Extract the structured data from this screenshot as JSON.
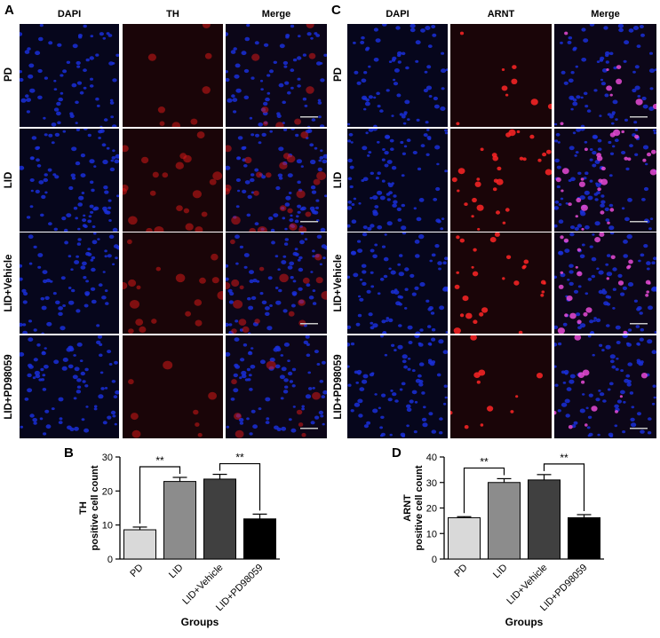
{
  "panels": {
    "a": {
      "letter": "A",
      "columns": [
        "DAPI",
        "TH",
        "Merge"
      ]
    },
    "c": {
      "letter": "C",
      "columns": [
        "DAPI",
        "ARNT",
        "Merge"
      ]
    },
    "b": {
      "letter": "B"
    },
    "d": {
      "letter": "D"
    }
  },
  "rows": [
    "PD",
    "LID",
    "LID+Vehicle",
    "LID+PD98059"
  ],
  "colors": {
    "dapi": "#1a2fd8",
    "th": "#d41818",
    "arnt": "#ff2626",
    "merge_pink": "#e84bd6"
  },
  "chart_data": [
    {
      "type": "bar",
      "panel": "B",
      "categories": [
        "PD",
        "LID",
        "LID+Vehicle",
        "LID+PD98059"
      ],
      "values": [
        8.6,
        22.8,
        23.5,
        11.8
      ],
      "errors": [
        0.8,
        1.2,
        1.4,
        1.4
      ],
      "bar_colors": [
        "#d9d9d9",
        "#8c8c8c",
        "#404040",
        "#000000"
      ],
      "xlabel": "Groups",
      "ylabel": [
        "TH",
        "positive cell count"
      ],
      "ylim": [
        0,
        30
      ],
      "yticks": [
        0,
        10,
        20,
        30
      ],
      "significance": [
        {
          "from": 0,
          "to": 1,
          "label": "**"
        },
        {
          "from": 2,
          "to": 3,
          "label": "**"
        }
      ]
    },
    {
      "type": "bar",
      "panel": "D",
      "categories": [
        "PD",
        "LID",
        "LID+Vehicle",
        "LID+PD98059"
      ],
      "values": [
        16.2,
        30.0,
        31.0,
        16.2
      ],
      "errors": [
        0.4,
        1.5,
        2.1,
        1.2
      ],
      "bar_colors": [
        "#d9d9d9",
        "#8c8c8c",
        "#404040",
        "#000000"
      ],
      "xlabel": "Groups",
      "ylabel": [
        "ARNT",
        "positive cell count"
      ],
      "ylim": [
        0,
        40
      ],
      "yticks": [
        0,
        10,
        20,
        30,
        40
      ],
      "significance": [
        {
          "from": 0,
          "to": 1,
          "label": "**"
        },
        {
          "from": 2,
          "to": 3,
          "label": "**"
        }
      ]
    }
  ]
}
